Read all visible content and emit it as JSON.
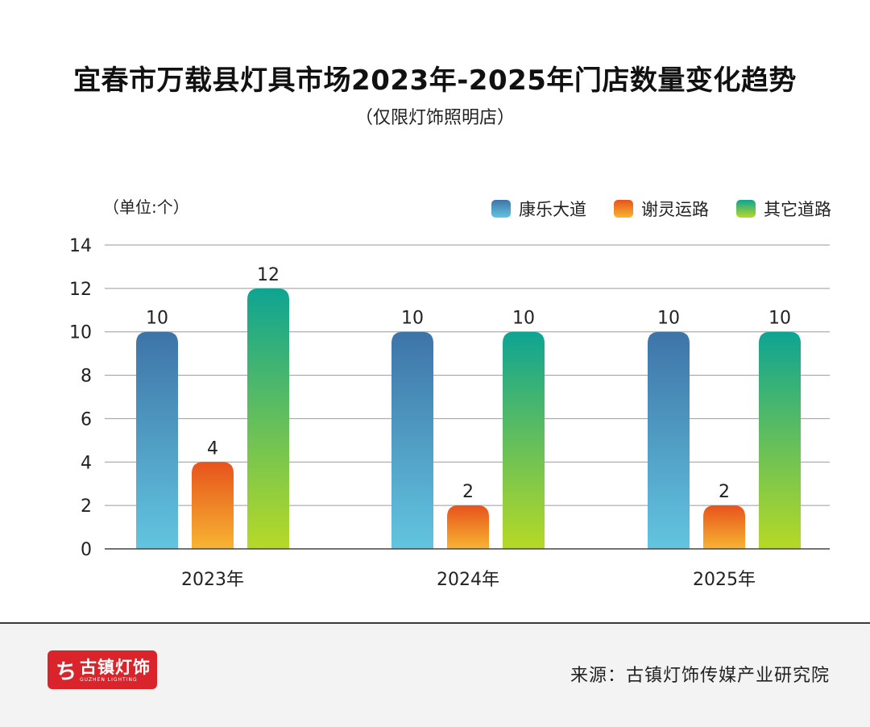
{
  "header": {
    "title": "宜春市万载县灯具市场2023年-2025年门店数量变化趋势",
    "subtitle": "（仅限灯饰照明店）"
  },
  "chart_data": {
    "type": "bar",
    "unit_label": "（单位:个）",
    "categories": [
      "2023年",
      "2024年",
      "2025年"
    ],
    "series": [
      {
        "name": "康乐大道",
        "values": [
          10,
          10,
          10
        ],
        "color_top": "#3e74a8",
        "color_bottom": "#62c5df"
      },
      {
        "name": "谢灵运路",
        "values": [
          4,
          2,
          2
        ],
        "color_top": "#e7531c",
        "color_bottom": "#f7b532"
      },
      {
        "name": "其它道路",
        "values": [
          12,
          10,
          10
        ],
        "color_top": "#0ea493",
        "color_bottom": "#b7d926"
      }
    ],
    "y_ticks": [
      0,
      2,
      4,
      6,
      8,
      10,
      12,
      14
    ],
    "ylim": [
      0,
      14
    ],
    "grid": true,
    "legend_position": "top-right"
  },
  "footer": {
    "logo_text": "古镇灯饰",
    "logo_subtext": "GUZHEN LIGHTING",
    "source": "来源：古镇灯饰传媒产业研究院"
  }
}
